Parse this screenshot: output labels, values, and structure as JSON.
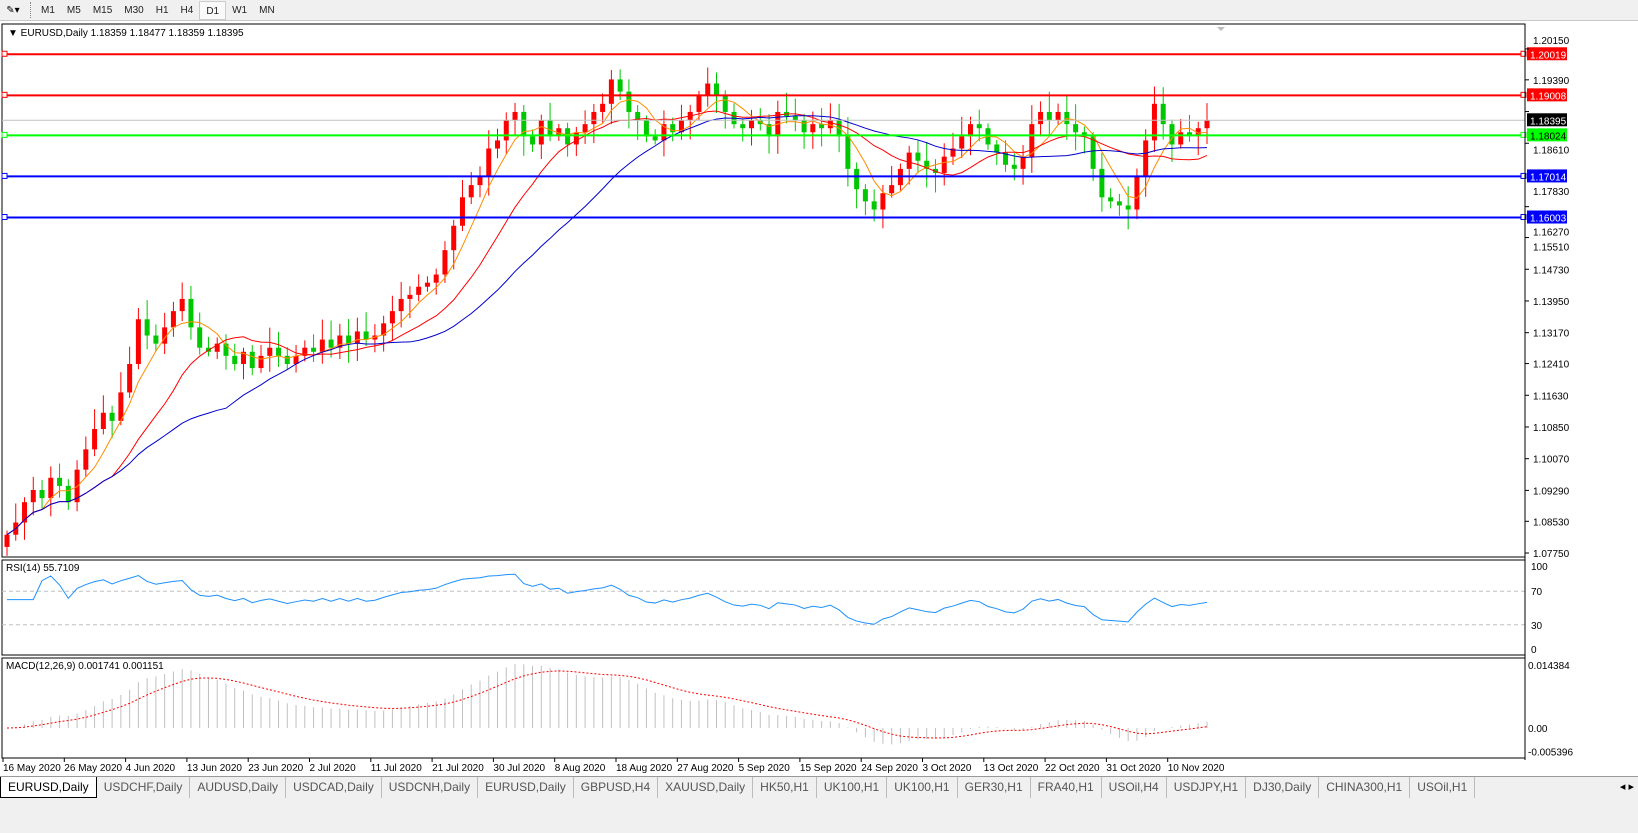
{
  "toolbar": {
    "timeframes": [
      "M1",
      "M5",
      "M15",
      "M30",
      "H1",
      "H4",
      "D1",
      "W1",
      "MN"
    ],
    "active": "D1"
  },
  "chart": {
    "header": "EURUSD,Daily  1.18359 1.18477 1.18359 1.18395",
    "price_ticks": [
      "1.20150",
      "1.19390",
      "1.18610",
      "1.17830",
      "1.16270",
      "1.15510",
      "1.14730",
      "1.13950",
      "1.13170",
      "1.12410",
      "1.11630",
      "1.10850",
      "1.10070",
      "1.09290",
      "1.08530",
      "1.07750"
    ],
    "price_tick_values": [
      1.2015,
      1.1939,
      1.1861,
      1.1783,
      1.1627,
      1.1551,
      1.1473,
      1.1395,
      1.1317,
      1.1241,
      1.1163,
      1.1085,
      1.1007,
      1.0929,
      1.0853,
      1.0775
    ],
    "hlines": [
      {
        "value": 1.20019,
        "label": "1.20019",
        "color": "#ff0000"
      },
      {
        "value": 1.19008,
        "label": "1.19008",
        "color": "#ff0000"
      },
      {
        "value": 1.18024,
        "label": "1.18024",
        "color": "#00ff00"
      },
      {
        "value": 1.17014,
        "label": "1.17014",
        "color": "#0000ff"
      },
      {
        "value": 1.16003,
        "label": "1.16003",
        "color": "#0000ff"
      }
    ],
    "current_price": {
      "value": 1.18395,
      "label": "1.18395"
    },
    "bull_color": "#ff0000",
    "bear_color": "#00c800",
    "ma_colors": [
      "#ff8c00",
      "#ff0000",
      "#0000cd"
    ],
    "closes": [
      1.082,
      1.085,
      1.09,
      1.093,
      1.091,
      1.096,
      1.094,
      1.09,
      1.098,
      1.103,
      1.108,
      1.112,
      1.11,
      1.117,
      1.124,
      1.135,
      1.131,
      1.129,
      1.133,
      1.137,
      1.14,
      1.133,
      1.128,
      1.127,
      1.129,
      1.126,
      1.124,
      1.127,
      1.123,
      1.126,
      1.128,
      1.126,
      1.124,
      1.126,
      1.128,
      1.127,
      1.13,
      1.128,
      1.131,
      1.129,
      1.132,
      1.13,
      1.131,
      1.134,
      1.137,
      1.14,
      1.141,
      1.143,
      1.144,
      1.146,
      1.152,
      1.158,
      1.165,
      1.168,
      1.17,
      1.177,
      1.179,
      1.184,
      1.186,
      1.18,
      1.178,
      1.184,
      1.18,
      1.182,
      1.178,
      1.181,
      1.183,
      1.186,
      1.188,
      1.194,
      1.191,
      1.186,
      1.184,
      1.18,
      1.179,
      1.183,
      1.181,
      1.184,
      1.186,
      1.19,
      1.193,
      1.19,
      1.186,
      1.183,
      1.182,
      1.184,
      1.183,
      1.18,
      1.186,
      1.185,
      1.184,
      1.181,
      1.183,
      1.182,
      1.184,
      1.18,
      1.172,
      1.167,
      1.164,
      1.162,
      1.166,
      1.168,
      1.172,
      1.176,
      1.174,
      1.172,
      1.171,
      1.175,
      1.177,
      1.18,
      1.183,
      1.182,
      1.178,
      1.176,
      1.173,
      1.172,
      1.175,
      1.183,
      1.186,
      1.184,
      1.186,
      1.183,
      1.181,
      1.18,
      1.172,
      1.165,
      1.164,
      1.163,
      1.162,
      1.17,
      1.179,
      1.188,
      1.183,
      1.178,
      1.181,
      1.18,
      1.182,
      1.18395
    ]
  },
  "rsi": {
    "label": "RSI(14) 55.7109",
    "ticks": [
      "100",
      "70",
      "30",
      "0"
    ],
    "levels": [
      70,
      30
    ],
    "color": "#1e90ff"
  },
  "macd": {
    "label": "MACD(12,26,9) 0.001741 0.001151",
    "ticks": [
      "0.014384",
      "0.00",
      "-0.005396"
    ],
    "max": 0.014384,
    "min": -0.005396
  },
  "dates": [
    "16 May 2020",
    "26 May 2020",
    "4 Jun 2020",
    "13 Jun 2020",
    "23 Jun 2020",
    "2 Jul 2020",
    "11 Jul 2020",
    "21 Jul 2020",
    "30 Jul 2020",
    "8 Aug 2020",
    "18 Aug 2020",
    "27 Aug 2020",
    "5 Sep 2020",
    "15 Sep 2020",
    "24 Sep 2020",
    "3 Oct 2020",
    "13 Oct 2020",
    "22 Oct 2020",
    "31 Oct 2020",
    "10 Nov 2020"
  ],
  "tabs": [
    "EURUSD,Daily",
    "USDCHF,Daily",
    "AUDUSD,Daily",
    "USDCAD,Daily",
    "USDCNH,Daily",
    "EURUSD,Daily",
    "GBPUSD,H4",
    "XAUUSD,Daily",
    "HK50,H1",
    "UK100,H1",
    "UK100,H1",
    "GER30,H1",
    "FRA40,H1",
    "USOil,H4",
    "USDJPY,H1",
    "DJ30,Daily",
    "CHINA300,H1",
    "USOil,H1"
  ],
  "active_tab": 0
}
